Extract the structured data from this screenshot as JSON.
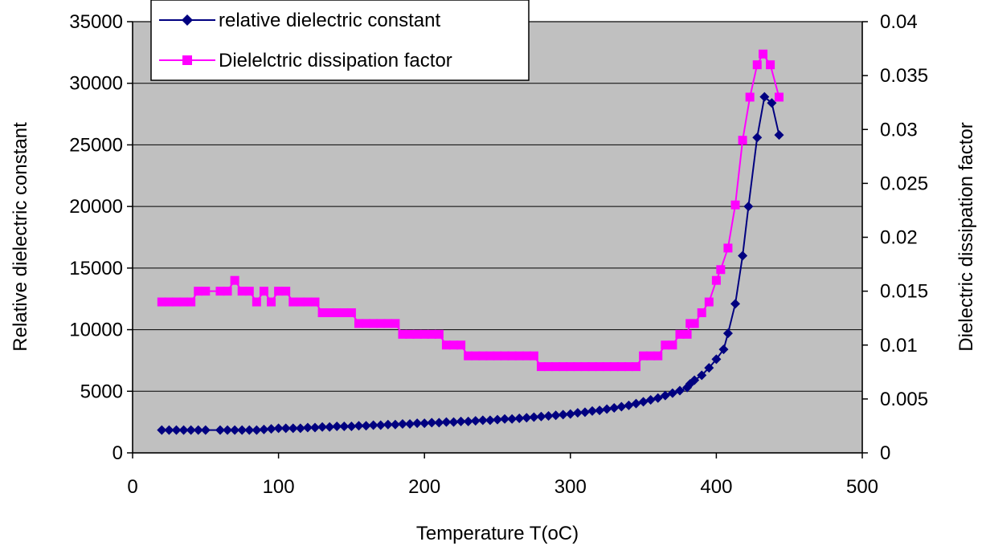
{
  "chart_data": {
    "type": "line",
    "title": "",
    "xlabel": "Temperature T(oC)",
    "ylabel": "Relative dielectric constant",
    "y2label": "Dielectric dissipation factor",
    "xlim": [
      0,
      500
    ],
    "ylim": [
      0,
      35000
    ],
    "y2lim": [
      0,
      0.04
    ],
    "xticks": [
      "0",
      "100",
      "200",
      "300",
      "400",
      "500"
    ],
    "yticks": [
      "0",
      "5000",
      "10000",
      "15000",
      "20000",
      "25000",
      "30000",
      "35000"
    ],
    "y2ticks": [
      "0",
      "0.005",
      "0.01",
      "0.015",
      "0.02",
      "0.025",
      "0.03",
      "0.035",
      "0.04"
    ],
    "grid": true,
    "plot_background": "#c0c0c0",
    "legend_position": "top-left",
    "series": [
      {
        "name": "relative dielectric constant",
        "axis": "left",
        "color": "#000080",
        "marker": "diamond",
        "points": [
          [
            20,
            1850
          ],
          [
            25,
            1850
          ],
          [
            30,
            1850
          ],
          [
            35,
            1850
          ],
          [
            40,
            1850
          ],
          [
            45,
            1850
          ],
          [
            50,
            1850
          ],
          [
            60,
            1850
          ],
          [
            65,
            1850
          ],
          [
            70,
            1850
          ],
          [
            75,
            1850
          ],
          [
            80,
            1850
          ],
          [
            85,
            1850
          ],
          [
            90,
            1900
          ],
          [
            95,
            1950
          ],
          [
            100,
            2000
          ],
          [
            105,
            2000
          ],
          [
            110,
            2000
          ],
          [
            115,
            2000
          ],
          [
            120,
            2050
          ],
          [
            125,
            2050
          ],
          [
            130,
            2100
          ],
          [
            135,
            2100
          ],
          [
            140,
            2150
          ],
          [
            145,
            2150
          ],
          [
            150,
            2150
          ],
          [
            155,
            2200
          ],
          [
            160,
            2200
          ],
          [
            165,
            2250
          ],
          [
            170,
            2250
          ],
          [
            175,
            2300
          ],
          [
            180,
            2300
          ],
          [
            185,
            2350
          ],
          [
            190,
            2350
          ],
          [
            195,
            2400
          ],
          [
            200,
            2400
          ],
          [
            205,
            2450
          ],
          [
            210,
            2450
          ],
          [
            215,
            2500
          ],
          [
            220,
            2500
          ],
          [
            225,
            2550
          ],
          [
            230,
            2550
          ],
          [
            235,
            2600
          ],
          [
            240,
            2650
          ],
          [
            245,
            2650
          ],
          [
            250,
            2700
          ],
          [
            255,
            2750
          ],
          [
            260,
            2750
          ],
          [
            265,
            2800
          ],
          [
            270,
            2850
          ],
          [
            275,
            2900
          ],
          [
            280,
            2950
          ],
          [
            285,
            3000
          ],
          [
            290,
            3050
          ],
          [
            295,
            3100
          ],
          [
            300,
            3150
          ],
          [
            305,
            3250
          ],
          [
            310,
            3300
          ],
          [
            315,
            3400
          ],
          [
            320,
            3450
          ],
          [
            325,
            3550
          ],
          [
            330,
            3650
          ],
          [
            335,
            3750
          ],
          [
            340,
            3850
          ],
          [
            345,
            4000
          ],
          [
            350,
            4150
          ],
          [
            355,
            4300
          ],
          [
            360,
            4450
          ],
          [
            365,
            4650
          ],
          [
            370,
            4850
          ],
          [
            375,
            5050
          ],
          [
            380,
            5300
          ],
          [
            382,
            5600
          ],
          [
            385,
            5900
          ],
          [
            390,
            6300
          ],
          [
            395,
            6900
          ],
          [
            400,
            7600
          ],
          [
            405,
            8400
          ],
          [
            408,
            9700
          ],
          [
            413,
            12100
          ],
          [
            418,
            16000
          ],
          [
            422,
            20000
          ],
          [
            428,
            25600
          ],
          [
            433,
            28900
          ],
          [
            438,
            28400
          ],
          [
            443,
            25800
          ]
        ]
      },
      {
        "name": "Dielelctric dissipation factor",
        "axis": "right",
        "color": "#ff00ff",
        "marker": "square",
        "points": [
          [
            20,
            0.014
          ],
          [
            25,
            0.014
          ],
          [
            30,
            0.014
          ],
          [
            35,
            0.014
          ],
          [
            40,
            0.014
          ],
          [
            45,
            0.015
          ],
          [
            50,
            0.015
          ],
          [
            60,
            0.015
          ],
          [
            65,
            0.015
          ],
          [
            70,
            0.016
          ],
          [
            75,
            0.015
          ],
          [
            80,
            0.015
          ],
          [
            85,
            0.014
          ],
          [
            90,
            0.015
          ],
          [
            95,
            0.014
          ],
          [
            100,
            0.015
          ],
          [
            105,
            0.015
          ],
          [
            110,
            0.014
          ],
          [
            115,
            0.014
          ],
          [
            120,
            0.014
          ],
          [
            125,
            0.014
          ],
          [
            130,
            0.013
          ],
          [
            135,
            0.013
          ],
          [
            140,
            0.013
          ],
          [
            145,
            0.013
          ],
          [
            150,
            0.013
          ],
          [
            155,
            0.012
          ],
          [
            160,
            0.012
          ],
          [
            165,
            0.012
          ],
          [
            170,
            0.012
          ],
          [
            175,
            0.012
          ],
          [
            180,
            0.012
          ],
          [
            185,
            0.011
          ],
          [
            190,
            0.011
          ],
          [
            195,
            0.011
          ],
          [
            200,
            0.011
          ],
          [
            205,
            0.011
          ],
          [
            210,
            0.011
          ],
          [
            215,
            0.01
          ],
          [
            220,
            0.01
          ],
          [
            225,
            0.01
          ],
          [
            230,
            0.009
          ],
          [
            235,
            0.009
          ],
          [
            240,
            0.009
          ],
          [
            245,
            0.009
          ],
          [
            250,
            0.009
          ],
          [
            255,
            0.009
          ],
          [
            260,
            0.009
          ],
          [
            265,
            0.009
          ],
          [
            270,
            0.009
          ],
          [
            275,
            0.009
          ],
          [
            280,
            0.008
          ],
          [
            285,
            0.008
          ],
          [
            290,
            0.008
          ],
          [
            295,
            0.008
          ],
          [
            300,
            0.008
          ],
          [
            305,
            0.008
          ],
          [
            310,
            0.008
          ],
          [
            315,
            0.008
          ],
          [
            320,
            0.008
          ],
          [
            325,
            0.008
          ],
          [
            330,
            0.008
          ],
          [
            335,
            0.008
          ],
          [
            340,
            0.008
          ],
          [
            345,
            0.008
          ],
          [
            350,
            0.009
          ],
          [
            355,
            0.009
          ],
          [
            360,
            0.009
          ],
          [
            365,
            0.01
          ],
          [
            370,
            0.01
          ],
          [
            375,
            0.011
          ],
          [
            380,
            0.011
          ],
          [
            382,
            0.012
          ],
          [
            385,
            0.012
          ],
          [
            390,
            0.013
          ],
          [
            395,
            0.014
          ],
          [
            400,
            0.016
          ],
          [
            403,
            0.017
          ],
          [
            408,
            0.019
          ],
          [
            413,
            0.023
          ],
          [
            418,
            0.029
          ],
          [
            423,
            0.033
          ],
          [
            428,
            0.036
          ],
          [
            432,
            0.037
          ],
          [
            437,
            0.036
          ],
          [
            443,
            0.033
          ]
        ]
      }
    ]
  }
}
